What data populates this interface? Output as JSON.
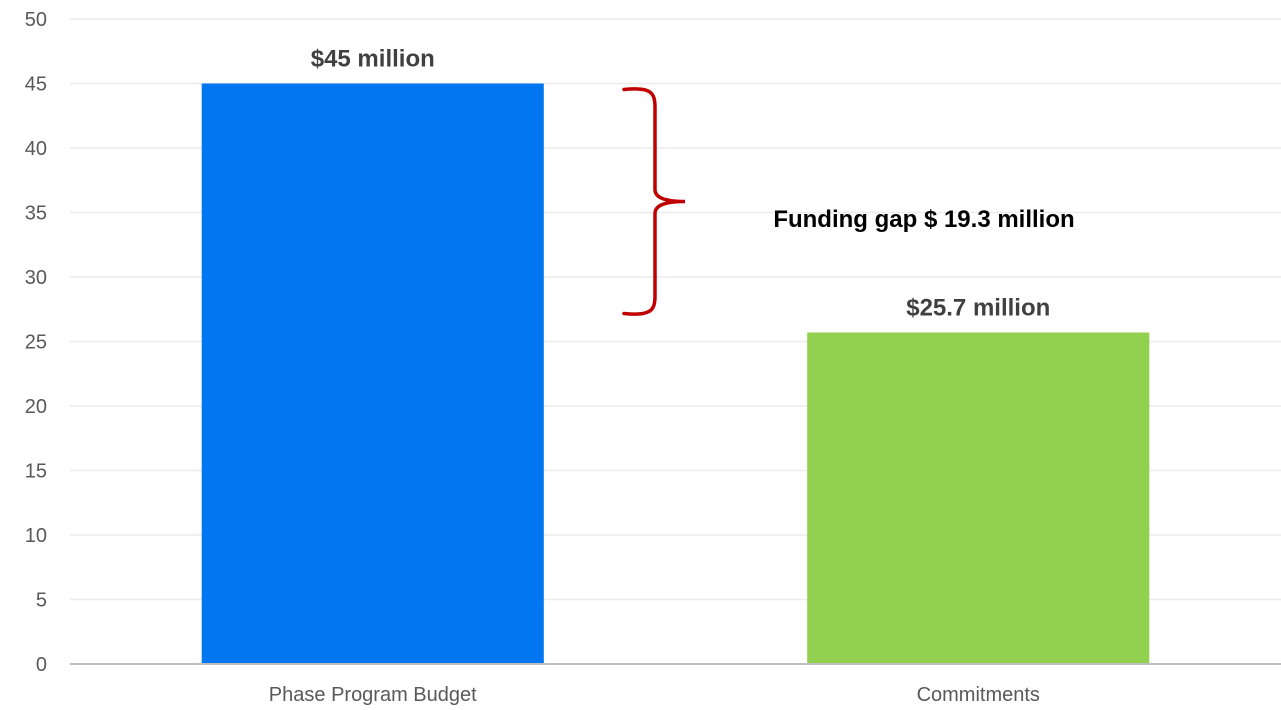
{
  "chart_data": {
    "type": "bar",
    "categories": [
      "Phase Program Budget",
      "Commitments"
    ],
    "values": [
      45,
      25.7
    ],
    "data_labels": [
      "$45 million",
      "$25.7 million"
    ],
    "bar_colors": [
      "#0077F0",
      "#92D050"
    ],
    "ylim": [
      0,
      50
    ],
    "yticks": [
      0,
      5,
      10,
      15,
      20,
      25,
      30,
      35,
      40,
      45,
      50
    ],
    "grid": true,
    "title": "",
    "xlabel": "",
    "ylabel": "",
    "annotation": {
      "text": "Funding gap $ 19.3 million",
      "from_value": 25.7,
      "to_value": 45,
      "bracket_color": "#C00000"
    }
  }
}
